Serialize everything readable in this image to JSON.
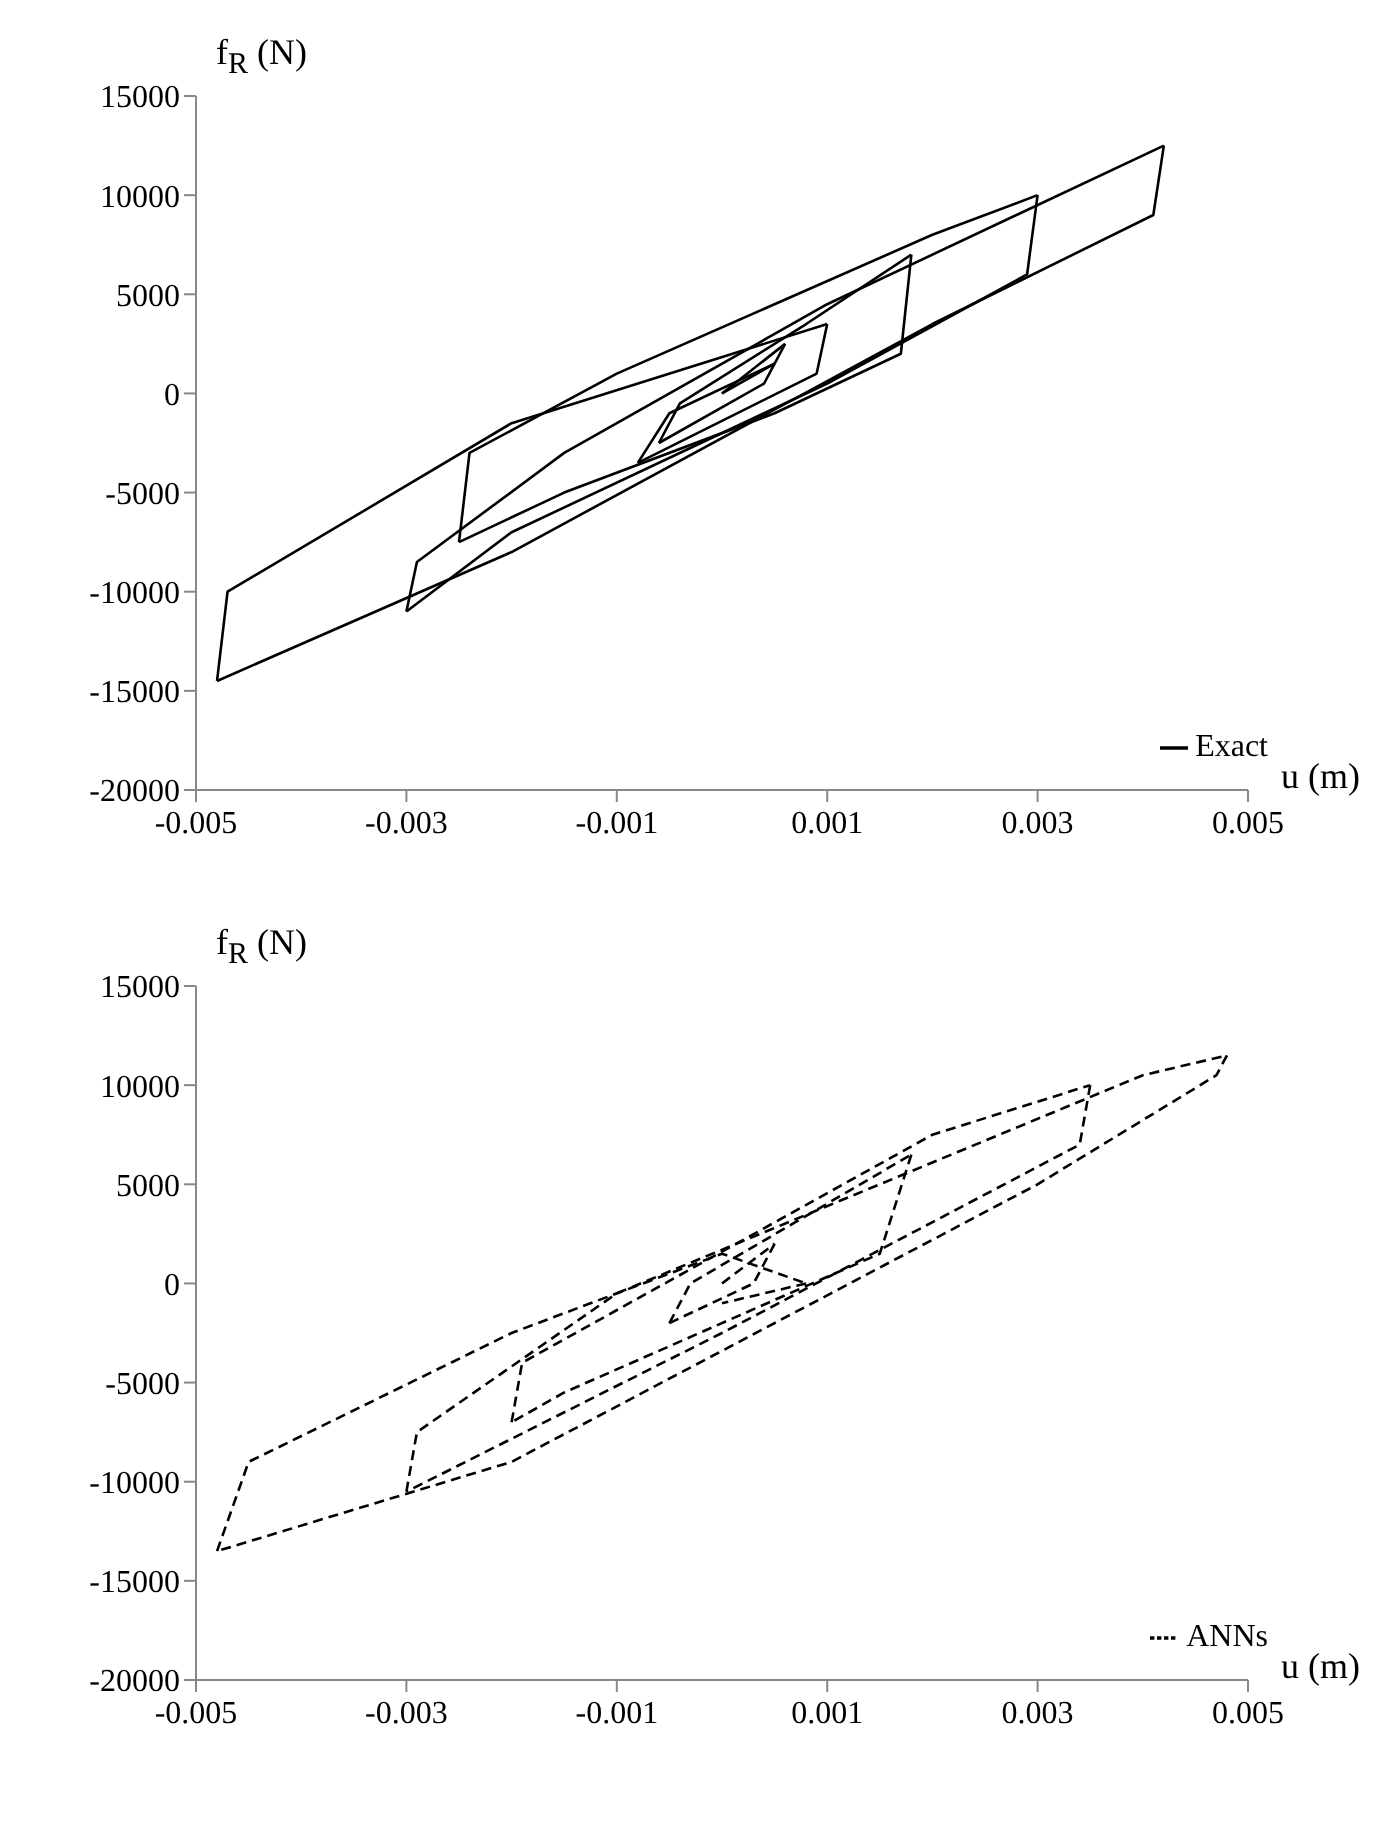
{
  "chart_data": [
    {
      "type": "line",
      "xlabel": "u (m)",
      "ylabel": "f$_{R}$ (N)",
      "xlim": [
        -0.005,
        0.005
      ],
      "xticks": [
        -0.005,
        -0.003,
        -0.001,
        0.001,
        0.003,
        0.005
      ],
      "ylim": [
        -20000,
        15000
      ],
      "yticks": [
        -20000,
        -15000,
        -10000,
        -5000,
        0,
        5000,
        10000,
        15000
      ],
      "legend": "bottom right",
      "marker": "none",
      "line_style": "solid",
      "series": [
        {
          "name": "Exact",
          "color": "#000000",
          "x": [
            0,
            0.0006
          ],
          "values": [
            0,
            2500
          ]
        },
        {
          "color": "#000000",
          "x": [
            0.0006,
            0.0004,
            -0.0006
          ],
          "values": [
            2500,
            500,
            -2500
          ]
        },
        {
          "color": "#000000",
          "x": [
            -0.0006,
            -0.0004,
            0.0008,
            0.0018
          ],
          "values": [
            -2500,
            -500,
            3500,
            7000
          ]
        },
        {
          "color": "#000000",
          "x": [
            0.0018,
            0.0017,
            0.0005,
            -0.0015,
            -0.0025
          ],
          "values": [
            7000,
            2000,
            -1000,
            -5000,
            -7500
          ]
        },
        {
          "color": "#000000",
          "x": [
            -0.0025,
            -0.0024,
            -0.001,
            0.002,
            0.003
          ],
          "values": [
            -7500,
            -3000,
            1000,
            8000,
            10000
          ]
        },
        {
          "color": "#000000",
          "x": [
            0.003,
            0.0029,
            0.001,
            -0.002,
            -0.003
          ],
          "values": [
            10000,
            6000,
            500,
            -7000,
            -11000
          ]
        },
        {
          "color": "#000000",
          "x": [
            -0.003,
            -0.0029,
            -0.0015,
            0.001,
            0.0042
          ],
          "values": [
            -11000,
            -8500,
            -3000,
            4500,
            12500
          ]
        },
        {
          "color": "#000000",
          "x": [
            0.0042,
            0.0041,
            0.002,
            -0.002,
            -0.0048
          ],
          "values": [
            12500,
            9000,
            3500,
            -8000,
            -14500
          ]
        },
        {
          "color": "#000000",
          "x": [
            -0.0048,
            -0.0047,
            -0.002,
            0.001
          ],
          "values": [
            -14500,
            -10000,
            -1500,
            3500
          ]
        },
        {
          "color": "#000000",
          "x": [
            0.001,
            0.0009,
            -0.0008
          ],
          "values": [
            3500,
            1000,
            -3500
          ]
        },
        {
          "color": "#000000",
          "x": [
            -0.0008,
            -0.0005,
            0.0005
          ],
          "values": [
            -3500,
            -1000,
            1500
          ]
        },
        {
          "color": "#000000",
          "x": [
            0.0005,
            0
          ],
          "values": [
            1500,
            0
          ]
        }
      ]
    },
    {
      "type": "line",
      "xlabel": "u (m)",
      "ylabel": "f$_{R}$ (N)",
      "xlim": [
        -0.005,
        0.005
      ],
      "xticks": [
        -0.005,
        -0.003,
        -0.001,
        0.001,
        0.003,
        0.005
      ],
      "ylim": [
        -20000,
        15000
      ],
      "yticks": [
        -20000,
        -15000,
        -10000,
        -5000,
        0,
        5000,
        10000,
        15000
      ],
      "legend": "bottom right",
      "marker": "none",
      "line_style": "dashed",
      "series": [
        {
          "name": "ANNs",
          "color": "#000000",
          "x": [
            0,
            0.0005
          ],
          "values": [
            0,
            2000
          ]
        },
        {
          "color": "#000000",
          "x": [
            0.0005,
            0.0003,
            -0.0005
          ],
          "values": [
            2000,
            0,
            -2000
          ]
        },
        {
          "color": "#000000",
          "x": [
            -0.0005,
            -0.0003,
            0.0018
          ],
          "values": [
            -2000,
            0,
            6500
          ]
        },
        {
          "color": "#000000",
          "x": [
            0.0018,
            0.0015,
            -0.0015,
            -0.002
          ],
          "values": [
            6500,
            1500,
            -5500,
            -7000
          ]
        },
        {
          "color": "#000000",
          "x": [
            -0.002,
            -0.0019,
            0.002,
            0.0035
          ],
          "values": [
            -7000,
            -4000,
            7500,
            10000
          ]
        },
        {
          "color": "#000000",
          "x": [
            0.0035,
            0.0034,
            0,
            -0.003
          ],
          "values": [
            10000,
            7000,
            -2500,
            -10500
          ]
        },
        {
          "color": "#000000",
          "x": [
            -0.003,
            -0.0029,
            -0.001,
            0.004,
            0.0048
          ],
          "values": [
            -10500,
            -7500,
            -500,
            10500,
            11500
          ]
        },
        {
          "color": "#000000",
          "x": [
            0.0048,
            0.0047,
            0.003,
            -0.002,
            -0.0048
          ],
          "values": [
            11500,
            10500,
            5000,
            -9000,
            -13500
          ]
        },
        {
          "color": "#000000",
          "x": [
            -0.0048,
            -0.0045,
            -0.002,
            0,
            0.0008
          ],
          "values": [
            -13500,
            -9000,
            -2500,
            1500,
            0
          ]
        },
        {
          "color": "#000000",
          "x": [
            0.0008,
            0
          ],
          "values": [
            0,
            -1000
          ]
        }
      ]
    }
  ]
}
